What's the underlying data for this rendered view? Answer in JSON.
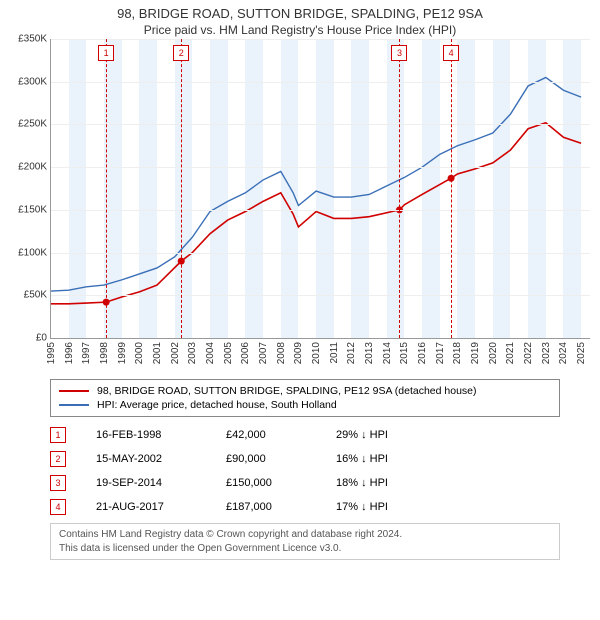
{
  "title": "98, BRIDGE ROAD, SUTTON BRIDGE, SPALDING, PE12 9SA",
  "subtitle": "Price paid vs. HM Land Registry's House Price Index (HPI)",
  "chart": {
    "type": "line",
    "background": "#ffffff",
    "band_color": "#eaf2fb",
    "grid_color": "#eeeeee",
    "marker_color": "#d00000",
    "point_color": "#d00000",
    "x_min": 1995,
    "x_max": 2025.5,
    "x_ticks": [
      1995,
      1996,
      1997,
      1998,
      1999,
      2000,
      2001,
      2002,
      2003,
      2004,
      2005,
      2006,
      2007,
      2008,
      2009,
      2010,
      2011,
      2012,
      2013,
      2014,
      2015,
      2016,
      2017,
      2018,
      2019,
      2020,
      2021,
      2022,
      2023,
      2024,
      2025
    ],
    "y_min": 0,
    "y_max": 350,
    "y_ticks": [
      0,
      50,
      100,
      150,
      200,
      250,
      300,
      350
    ],
    "y_tick_labels": [
      "£0",
      "£50K",
      "£100K",
      "£150K",
      "£200K",
      "£250K",
      "£300K",
      "£350K"
    ],
    "series": [
      {
        "name": "hpi",
        "color": "#3a6fb7",
        "width": 1.4,
        "data": [
          [
            1995,
            55
          ],
          [
            1996,
            56
          ],
          [
            1997,
            60
          ],
          [
            1998,
            62
          ],
          [
            1999,
            68
          ],
          [
            2000,
            75
          ],
          [
            2001,
            82
          ],
          [
            2002,
            95
          ],
          [
            2003,
            118
          ],
          [
            2004,
            148
          ],
          [
            2005,
            160
          ],
          [
            2006,
            170
          ],
          [
            2007,
            185
          ],
          [
            2008,
            195
          ],
          [
            2008.7,
            170
          ],
          [
            2009,
            155
          ],
          [
            2010,
            172
          ],
          [
            2011,
            165
          ],
          [
            2012,
            165
          ],
          [
            2013,
            168
          ],
          [
            2014,
            178
          ],
          [
            2015,
            188
          ],
          [
            2016,
            200
          ],
          [
            2017,
            215
          ],
          [
            2018,
            225
          ],
          [
            2019,
            232
          ],
          [
            2020,
            240
          ],
          [
            2021,
            262
          ],
          [
            2022,
            295
          ],
          [
            2023,
            305
          ],
          [
            2024,
            290
          ],
          [
            2025,
            282
          ]
        ]
      },
      {
        "name": "price_paid",
        "color": "#d00000",
        "width": 1.6,
        "data": [
          [
            1995,
            40
          ],
          [
            1996,
            40
          ],
          [
            1997,
            41
          ],
          [
            1998.12,
            42
          ],
          [
            1999,
            48
          ],
          [
            2000,
            54
          ],
          [
            2001,
            62
          ],
          [
            2002.37,
            90
          ],
          [
            2003,
            100
          ],
          [
            2004,
            122
          ],
          [
            2005,
            138
          ],
          [
            2006,
            148
          ],
          [
            2007,
            160
          ],
          [
            2008,
            170
          ],
          [
            2008.7,
            145
          ],
          [
            2009,
            130
          ],
          [
            2010,
            148
          ],
          [
            2011,
            140
          ],
          [
            2012,
            140
          ],
          [
            2013,
            142
          ],
          [
            2014.72,
            150
          ],
          [
            2015,
            156
          ],
          [
            2016,
            168
          ],
          [
            2017.64,
            187
          ],
          [
            2018,
            192
          ],
          [
            2019,
            198
          ],
          [
            2020,
            205
          ],
          [
            2021,
            220
          ],
          [
            2022,
            245
          ],
          [
            2023,
            252
          ],
          [
            2024,
            235
          ],
          [
            2025,
            228
          ]
        ]
      }
    ],
    "sale_points": [
      {
        "x": 1998.12,
        "y": 42
      },
      {
        "x": 2002.37,
        "y": 90
      },
      {
        "x": 2014.72,
        "y": 150
      },
      {
        "x": 2017.64,
        "y": 187
      }
    ],
    "marker_lines": [
      {
        "num": "1",
        "x": 1998.12
      },
      {
        "num": "2",
        "x": 2002.37
      },
      {
        "num": "3",
        "x": 2014.72
      },
      {
        "num": "4",
        "x": 2017.64
      }
    ]
  },
  "legend": [
    {
      "color": "#d00000",
      "label": "98, BRIDGE ROAD, SUTTON BRIDGE, SPALDING, PE12 9SA (detached house)"
    },
    {
      "color": "#3a6fb7",
      "label": "HPI: Average price, detached house, South Holland"
    }
  ],
  "events": [
    {
      "num": "1",
      "date": "16-FEB-1998",
      "price": "£42,000",
      "diff": "29% ↓ HPI"
    },
    {
      "num": "2",
      "date": "15-MAY-2002",
      "price": "£90,000",
      "diff": "16% ↓ HPI"
    },
    {
      "num": "3",
      "date": "19-SEP-2014",
      "price": "£150,000",
      "diff": "18% ↓ HPI"
    },
    {
      "num": "4",
      "date": "21-AUG-2017",
      "price": "£187,000",
      "diff": "17% ↓ HPI"
    }
  ],
  "footer_line1": "Contains HM Land Registry data © Crown copyright and database right 2024.",
  "footer_line2": "This data is licensed under the Open Government Licence v3.0."
}
